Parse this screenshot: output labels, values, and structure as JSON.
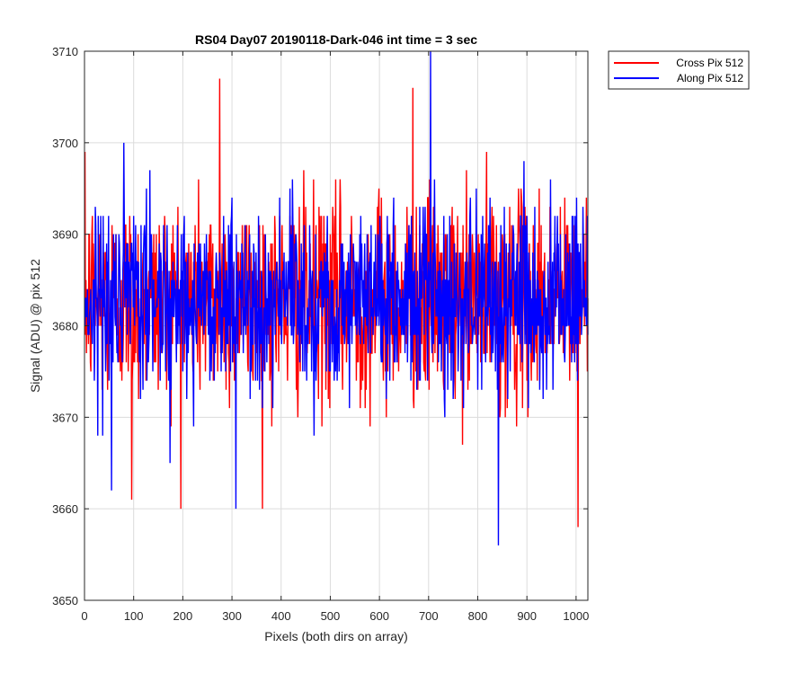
{
  "chart_data": {
    "type": "line",
    "title": "RS04 Day07 20190118-Dark-046 int time = 3 sec",
    "xlabel": "Pixels (both dirs on array)",
    "ylabel": "Signal (ADU) @ pix 512",
    "xlim": [
      0,
      1024
    ],
    "ylim": [
      3650,
      3710
    ],
    "xticks": [
      0,
      100,
      200,
      300,
      400,
      500,
      600,
      700,
      800,
      900,
      1000
    ],
    "yticks": [
      3650,
      3660,
      3670,
      3680,
      3690,
      3700,
      3710
    ],
    "grid": true,
    "legend_position": "outside-top-right",
    "series": [
      {
        "name": "Cross Pix 512",
        "color": "#ff0000",
        "x_start": 1,
        "x_end": 1024,
        "mean": 3683,
        "std": 5.6,
        "keypoints": [
          {
            "x": 96,
            "y": 3661
          },
          {
            "x": 275,
            "y": 3707
          },
          {
            "x": 668,
            "y": 3706
          },
          {
            "x": 1004,
            "y": 3658
          }
        ]
      },
      {
        "name": "Along Pix 512",
        "color": "#0000ff",
        "x_start": 1,
        "x_end": 1024,
        "mean": 3683,
        "std": 5.0,
        "keypoints": [
          {
            "x": 704,
            "y": 3710
          },
          {
            "x": 842,
            "y": 3656
          },
          {
            "x": 308,
            "y": 3660
          },
          {
            "x": 55,
            "y": 3662
          }
        ]
      }
    ]
  }
}
